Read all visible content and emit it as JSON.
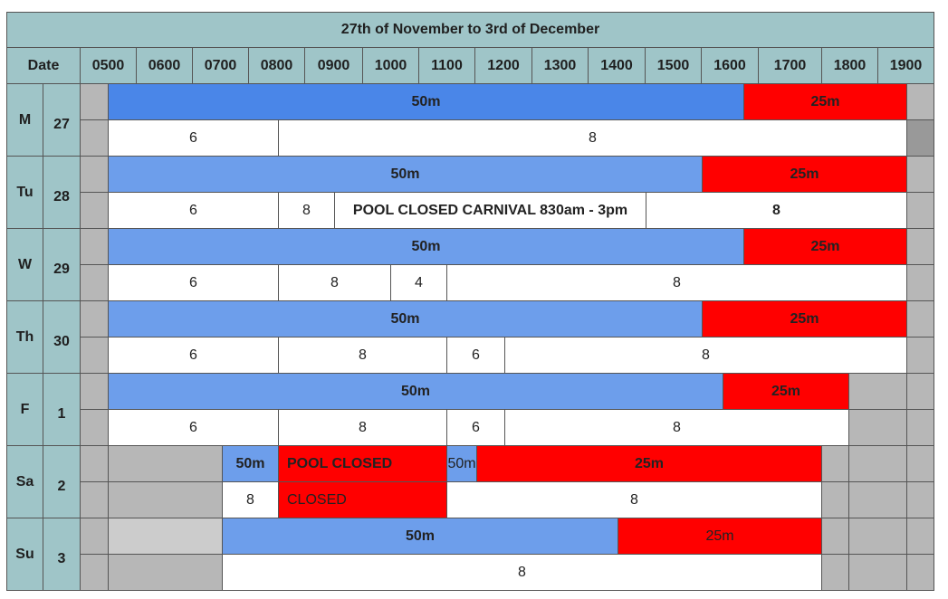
{
  "title": "27th of November to 3rd of December",
  "header": {
    "date_label": "Date",
    "hours": [
      "0500",
      "0600",
      "0700",
      "0800",
      "0900",
      "1000",
      "1100",
      "1200",
      "1300",
      "1400",
      "1500",
      "1600",
      "1700",
      "1800",
      "1900"
    ]
  },
  "colors": {
    "header_bg": "#9fc5c8",
    "blue_dark": "#4a86e8",
    "blue_light": "#6d9eeb",
    "red": "#ff0000",
    "gray": "#b7b7b7",
    "gray_dark": "#999999",
    "gray_light": "#cccccc",
    "white": "#ffffff"
  },
  "days": [
    {
      "day": "M",
      "date": "27",
      "top": [
        {
          "span": [
            0,
            1
          ],
          "color": "gray"
        },
        {
          "span": [
            1,
            12
          ],
          "label": "50m",
          "color": "blue_dark",
          "bold": true
        },
        {
          "span": [
            12,
            15
          ],
          "label": "25m",
          "color": "red",
          "bold": true
        },
        {
          "span": [
            15,
            16
          ],
          "color": "gray"
        }
      ],
      "bottom": [
        {
          "span": [
            0,
            1
          ],
          "color": "gray"
        },
        {
          "span": [
            1,
            3
          ],
          "label": "6",
          "color": "white"
        },
        {
          "span": [
            3,
            15
          ],
          "label": "8",
          "color": "white"
        },
        {
          "span": [
            15,
            16
          ],
          "color": "gray_dark"
        }
      ]
    },
    {
      "day": "Tu",
      "date": "28",
      "top": [
        {
          "span": [
            0,
            1
          ],
          "color": "gray"
        },
        {
          "span": [
            1,
            11
          ],
          "label": "50m",
          "color": "blue_light",
          "bold": true
        },
        {
          "span": [
            11,
            15
          ],
          "label": "25m",
          "color": "red",
          "bold": true
        },
        {
          "span": [
            15,
            16
          ],
          "color": "gray"
        }
      ],
      "bottom": [
        {
          "span": [
            0,
            1
          ],
          "color": "gray"
        },
        {
          "span": [
            1,
            3
          ],
          "label": "6",
          "color": "white"
        },
        {
          "span": [
            3,
            4
          ],
          "label": "8",
          "color": "white"
        },
        {
          "span": [
            4,
            10
          ],
          "label": "POOL CLOSED CARNIVAL 830am - 3pm",
          "color": "white",
          "bold": true
        },
        {
          "span": [
            10,
            15
          ],
          "label": "8",
          "color": "white",
          "bold": true
        },
        {
          "span": [
            15,
            16
          ],
          "color": "gray"
        }
      ]
    },
    {
      "day": "W",
      "date": "29",
      "top": [
        {
          "span": [
            0,
            1
          ],
          "color": "gray"
        },
        {
          "span": [
            1,
            12
          ],
          "label": "50m",
          "color": "blue_light",
          "bold": true
        },
        {
          "span": [
            12,
            15
          ],
          "label": "25m",
          "color": "red",
          "bold": true
        },
        {
          "span": [
            15,
            16
          ],
          "color": "gray"
        }
      ],
      "bottom": [
        {
          "span": [
            0,
            1
          ],
          "color": "gray"
        },
        {
          "span": [
            1,
            3
          ],
          "label": "6",
          "color": "white"
        },
        {
          "span": [
            3,
            5
          ],
          "label": "8",
          "color": "white"
        },
        {
          "span": [
            5,
            6
          ],
          "label": "4",
          "color": "white"
        },
        {
          "span": [
            6,
            15
          ],
          "label": "8",
          "color": "white"
        },
        {
          "span": [
            15,
            16
          ],
          "color": "gray"
        }
      ]
    },
    {
      "day": "Th",
      "date": "30",
      "top": [
        {
          "span": [
            0,
            1
          ],
          "color": "gray"
        },
        {
          "span": [
            1,
            11
          ],
          "label": "50m",
          "color": "blue_light",
          "bold": true
        },
        {
          "span": [
            11,
            15
          ],
          "label": "25m",
          "color": "red",
          "bold": true
        },
        {
          "span": [
            15,
            16
          ],
          "color": "gray"
        }
      ],
      "bottom": [
        {
          "span": [
            0,
            1
          ],
          "color": "gray"
        },
        {
          "span": [
            1,
            3
          ],
          "label": "6",
          "color": "white"
        },
        {
          "span": [
            3,
            6
          ],
          "label": "8",
          "color": "white"
        },
        {
          "span": [
            6,
            7.5
          ],
          "label": "6",
          "color": "white"
        },
        {
          "span": [
            7.5,
            15
          ],
          "label": "8",
          "color": "white"
        },
        {
          "span": [
            15,
            16
          ],
          "color": "gray"
        }
      ]
    },
    {
      "day": "F",
      "date": "1",
      "top": [
        {
          "span": [
            0,
            1
          ],
          "color": "gray"
        },
        {
          "span": [
            1,
            11.5
          ],
          "label": "50m",
          "color": "blue_light",
          "bold": true
        },
        {
          "span": [
            11.5,
            14
          ],
          "label": "25m",
          "color": "red",
          "bold": true
        },
        {
          "span": [
            14,
            15
          ],
          "color": "gray"
        },
        {
          "span": [
            15,
            16
          ],
          "color": "gray"
        }
      ],
      "bottom": [
        {
          "span": [
            0,
            1
          ],
          "color": "gray"
        },
        {
          "span": [
            1,
            3
          ],
          "label": "6",
          "color": "white"
        },
        {
          "span": [
            3,
            6
          ],
          "label": "8",
          "color": "white"
        },
        {
          "span": [
            6,
            7.5
          ],
          "label": "6",
          "color": "white"
        },
        {
          "span": [
            7.5,
            14
          ],
          "label": "8",
          "color": "white"
        },
        {
          "span": [
            14,
            15
          ],
          "color": "gray"
        },
        {
          "span": [
            15,
            16
          ],
          "color": "gray"
        }
      ]
    },
    {
      "day": "Sa",
      "date": "2",
      "top": [
        {
          "span": [
            0,
            1
          ],
          "color": "gray"
        },
        {
          "span": [
            1,
            2
          ],
          "color": "gray"
        },
        {
          "span": [
            2,
            3
          ],
          "label": "50m",
          "color": "blue_light",
          "bold": true
        },
        {
          "span": [
            3,
            6
          ],
          "label": "POOL CLOSED",
          "color": "red",
          "bold": true,
          "align": "left"
        },
        {
          "span": [
            6,
            7
          ],
          "label": "50m",
          "color": "blue_light"
        },
        {
          "span": [
            7,
            13
          ],
          "label": "25m",
          "color": "red",
          "bold": true
        },
        {
          "span": [
            13,
            14
          ],
          "color": "gray"
        },
        {
          "span": [
            14,
            15
          ],
          "color": "gray"
        },
        {
          "span": [
            15,
            16
          ],
          "color": "gray"
        }
      ],
      "bottom": [
        {
          "span": [
            0,
            1
          ],
          "color": "gray"
        },
        {
          "span": [
            1,
            2
          ],
          "color": "gray"
        },
        {
          "span": [
            2,
            3
          ],
          "label": "8",
          "color": "white"
        },
        {
          "span": [
            3,
            6
          ],
          "label": "CLOSED",
          "color": "red",
          "align": "left"
        },
        {
          "span": [
            6,
            13
          ],
          "label": "8",
          "color": "white"
        },
        {
          "span": [
            13,
            14
          ],
          "color": "gray"
        },
        {
          "span": [
            14,
            15
          ],
          "color": "gray"
        },
        {
          "span": [
            15,
            16
          ],
          "color": "gray"
        }
      ]
    },
    {
      "day": "Su",
      "date": "3",
      "top": [
        {
          "span": [
            0,
            1
          ],
          "color": "gray"
        },
        {
          "span": [
            1,
            2
          ],
          "color": "gray_light"
        },
        {
          "span": [
            2,
            9.5
          ],
          "label": "50m",
          "color": "blue_light",
          "bold": true
        },
        {
          "span": [
            9.5,
            13
          ],
          "label": "25m",
          "color": "red"
        },
        {
          "span": [
            13,
            14
          ],
          "color": "gray"
        },
        {
          "span": [
            14,
            15
          ],
          "color": "gray"
        },
        {
          "span": [
            15,
            16
          ],
          "color": "gray"
        }
      ],
      "bottom": [
        {
          "span": [
            0,
            1
          ],
          "color": "gray"
        },
        {
          "span": [
            1,
            2
          ],
          "color": "gray"
        },
        {
          "span": [
            2,
            13
          ],
          "label": "8",
          "color": "white"
        },
        {
          "span": [
            13,
            14
          ],
          "color": "gray"
        },
        {
          "span": [
            14,
            15
          ],
          "color": "gray"
        },
        {
          "span": [
            15,
            16
          ],
          "color": "gray"
        }
      ]
    }
  ]
}
